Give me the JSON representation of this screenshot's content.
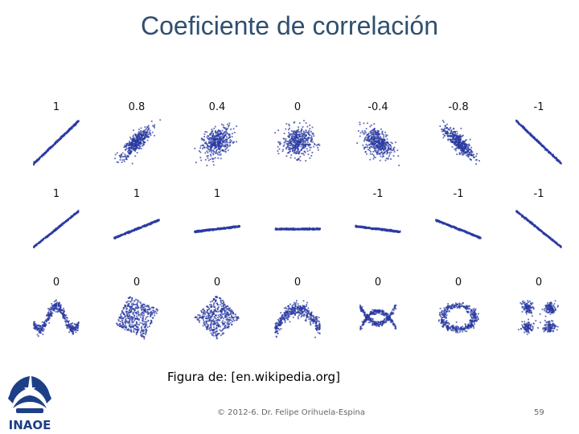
{
  "slide": {
    "title": "Coeficiente de correlación",
    "caption": "Figura de: [en.wikipedia.org]",
    "footer": "© 2012-6. Dr. Felipe Orihuela-Espina",
    "page_number": "59"
  },
  "logo": {
    "text": "INAOE",
    "color": "#1c3f86"
  },
  "figure": {
    "point_color": "#2a3aa0",
    "rows": [
      {
        "labels": [
          "1",
          "0.8",
          "0.4",
          "0",
          "-0.4",
          "-0.8",
          "-1"
        ],
        "kinds": [
          "line",
          "ellipse",
          "ellipse",
          "blob",
          "ellipse",
          "ellipse",
          "line"
        ],
        "params": [
          1,
          0.8,
          0.4,
          0,
          -0.4,
          -0.8,
          -1
        ]
      },
      {
        "labels": [
          "1",
          "1",
          "1",
          "",
          "-1",
          "-1",
          "-1"
        ],
        "kinds": [
          "slope",
          "slope",
          "slope",
          "slope",
          "slope",
          "slope",
          "slope"
        ],
        "params": [
          1.0,
          0.5,
          0.15,
          0,
          -0.15,
          -0.5,
          -1.0
        ]
      },
      {
        "labels": [
          "0",
          "0",
          "0",
          "0",
          "0",
          "0",
          "0"
        ],
        "kinds": [
          "wave",
          "rotsquare",
          "diamond",
          "parabola",
          "xshape",
          "ring",
          "clusters"
        ],
        "params": [
          0,
          0,
          0,
          0,
          0,
          0,
          0
        ]
      }
    ]
  }
}
